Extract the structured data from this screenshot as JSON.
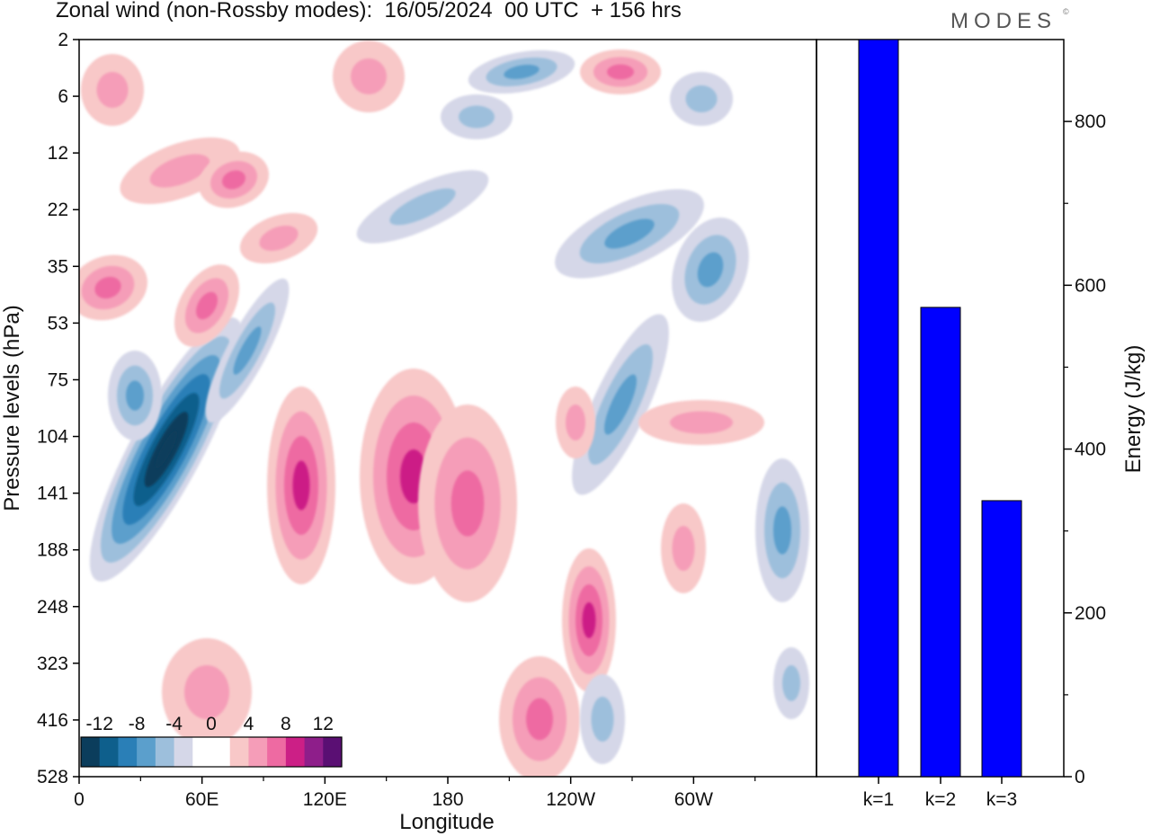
{
  "header": {
    "title": "Zonal wind (non-Rossby modes):  16/05/2024  00 UTC  + 156 hrs",
    "brand": "MODES",
    "brand_mark": "©"
  },
  "chart_data": [
    {
      "type": "heatmap",
      "title": "Zonal wind (non-Rossby modes):  16/05/2024  00 UTC  + 156 hrs",
      "xlabel": "Longitude",
      "ylabel": "Pressure levels (hPa)",
      "x_ticks": [
        "0",
        "60E",
        "120E",
        "180",
        "120W",
        "60W"
      ],
      "x_tick_values": [
        0,
        60,
        120,
        180,
        240,
        300
      ],
      "xlim": [
        0,
        360
      ],
      "y_ticks": [
        "2",
        "6",
        "12",
        "22",
        "35",
        "53",
        "75",
        "104",
        "141",
        "188",
        "248",
        "323",
        "416",
        "528"
      ],
      "y_scale": "model levels, pressure increasing downward",
      "colorbar": {
        "labels": [
          "-12",
          "-8",
          "-4",
          "0",
          "4",
          "8",
          "12"
        ],
        "levels": [
          -14,
          -12,
          -10,
          -8,
          -6,
          -4,
          -2,
          0,
          2,
          4,
          6,
          8,
          10,
          12,
          14
        ],
        "colors": [
          "#0b3d5c",
          "#0e5f8c",
          "#2a7fb7",
          "#5b9fcc",
          "#9dbfdc",
          "#d5d7e8",
          "#ffffff",
          "#ffffff",
          "#f8c8c8",
          "#f59db8",
          "#ee6aa2",
          "#cc1f86",
          "#8e1e8a",
          "#5a0f73"
        ],
        "location": "bottom-left inset"
      },
      "features": [
        {
          "name": "strong easterly band",
          "sign": "negative",
          "lon_range": [
            40,
            90
          ],
          "level_range": [
            "75",
            "248"
          ],
          "peak": -13
        },
        {
          "name": "westerly anomaly",
          "sign": "positive",
          "lon_range": [
            95,
            135
          ],
          "level_range": [
            "104",
            "248"
          ],
          "peak": 8
        },
        {
          "name": "westerly anomaly",
          "sign": "positive",
          "lon_range": [
            155,
            215
          ],
          "level_range": [
            "75",
            "248"
          ],
          "peak": 8
        },
        {
          "name": "westerly anomaly",
          "sign": "positive",
          "lon_range": [
            205,
            240
          ],
          "level_range": [
            "323",
            "528"
          ],
          "peak": 6
        },
        {
          "name": "westerly anomaly",
          "sign": "positive",
          "lon_range": [
            240,
            275
          ],
          "level_range": [
            "188",
            "323"
          ],
          "peak": 8
        },
        {
          "name": "easterly tilted band",
          "sign": "negative",
          "lon_range": [
            240,
            320
          ],
          "level_range": [
            "22",
            "141"
          ],
          "peak": -8
        },
        {
          "name": "easterly anomaly",
          "sign": "negative",
          "lon_range": [
            340,
            360
          ],
          "level_range": [
            "141",
            "248"
          ],
          "peak": -6
        }
      ]
    },
    {
      "type": "bar",
      "categories": [
        "k=1",
        "k=2",
        "k=3"
      ],
      "values": [
        905,
        573,
        337
      ],
      "ylabel": "Energy (J/kg)",
      "ylim": [
        0,
        900
      ],
      "y_ticks": [
        0,
        200,
        400,
        600,
        800
      ],
      "bar_color": "#0000ff",
      "edge_color": "#000000",
      "axis_side": "right",
      "note": "k=1 bar reaches the top of the axis"
    }
  ]
}
